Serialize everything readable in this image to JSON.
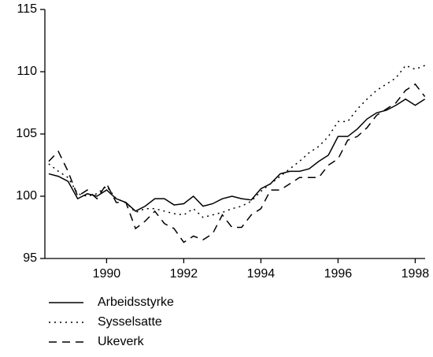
{
  "chart_data": {
    "type": "line",
    "x": [
      1988.5,
      1988.75,
      1989,
      1989.25,
      1989.5,
      1989.75,
      1990,
      1990.25,
      1990.5,
      1990.75,
      1991,
      1991.25,
      1991.5,
      1991.75,
      1992,
      1992.25,
      1992.5,
      1992.75,
      1993,
      1993.25,
      1993.5,
      1993.75,
      1994,
      1994.25,
      1994.5,
      1994.75,
      1995,
      1995.25,
      1995.5,
      1995.75,
      1996,
      1996.25,
      1996.5,
      1996.75,
      1997,
      1997.25,
      1997.5,
      1997.75,
      1998,
      1998.25
    ],
    "series": [
      {
        "name": "Arbeidsstyrke",
        "color": "#000000",
        "dash": "solid",
        "values": [
          101.8,
          101.6,
          101.2,
          99.8,
          100.2,
          100.0,
          100.5,
          99.8,
          99.5,
          98.8,
          99.2,
          99.8,
          99.8,
          99.3,
          99.4,
          100.0,
          99.2,
          99.4,
          99.8,
          100.0,
          99.8,
          99.7,
          100.6,
          101.0,
          101.8,
          102.0,
          102.0,
          102.2,
          102.8,
          103.3,
          104.8,
          104.8,
          105.4,
          106.2,
          106.7,
          106.9,
          107.3,
          107.8,
          107.3,
          107.8
        ]
      },
      {
        "name": "Sysselsatte",
        "color": "#000000",
        "dash": "dotted",
        "values": [
          102.6,
          102.0,
          101.5,
          100.2,
          100.0,
          100.2,
          100.8,
          99.8,
          99.5,
          98.7,
          99.0,
          99.0,
          98.8,
          98.6,
          98.5,
          99.0,
          98.3,
          98.5,
          98.7,
          99.0,
          99.2,
          99.6,
          100.4,
          101.0,
          101.6,
          102.2,
          102.8,
          103.5,
          104.0,
          104.8,
          106.0,
          106.0,
          107.0,
          107.8,
          108.5,
          109.0,
          109.5,
          110.5,
          110.2,
          110.5
        ]
      },
      {
        "name": "Ukeverk",
        "color": "#000000",
        "dash": "dashed",
        "values": [
          102.8,
          103.6,
          102.0,
          100.0,
          100.5,
          99.8,
          101.0,
          99.5,
          99.5,
          97.4,
          98.0,
          98.8,
          97.8,
          97.4,
          96.3,
          96.8,
          96.5,
          97.0,
          98.5,
          97.5,
          97.5,
          98.5,
          99.0,
          100.5,
          100.5,
          101.0,
          101.5,
          101.5,
          101.5,
          102.5,
          103.0,
          104.5,
          104.8,
          105.5,
          106.5,
          107.0,
          107.5,
          108.5,
          109.0,
          108.0
        ]
      }
    ],
    "xlim": [
      1988.4,
      1998.4
    ],
    "xticks": [
      1990,
      1992,
      1994,
      1996,
      1998
    ],
    "ylim": [
      95,
      115
    ],
    "yticks": [
      95,
      100,
      105,
      110,
      115
    ]
  }
}
